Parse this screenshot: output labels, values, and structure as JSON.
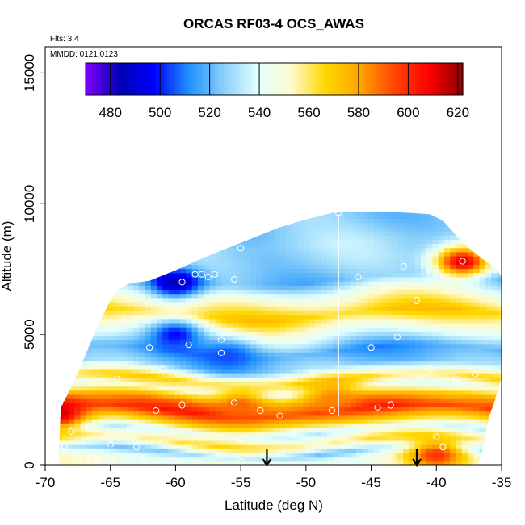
{
  "chart_data": {
    "type": "heatmap",
    "title": "ORCAS RF03-4 OCS_AWAS",
    "notes": [
      "Flts: 3,4",
      "MMDD: 0121,0123"
    ],
    "xlabel": "Latitude (deg N)",
    "ylabel": "Altitude (m)",
    "xlim": [
      -70,
      -35
    ],
    "ylim": [
      0,
      16000
    ],
    "x_ticks": [
      -70,
      -65,
      -60,
      -55,
      -50,
      -45,
      -40,
      -35
    ],
    "x_tick_labels": [
      "-70",
      "-65",
      "-60",
      "-55",
      "-50",
      "-45",
      "-40",
      "-35"
    ],
    "y_ticks": [
      0,
      5000,
      10000,
      15000
    ],
    "y_tick_labels": [
      "0",
      "5000",
      "10000",
      "15000"
    ],
    "colorbar": {
      "range": [
        470,
        622
      ],
      "ticks": [
        480,
        500,
        520,
        540,
        560,
        580,
        600,
        620
      ],
      "tick_labels": [
        "480",
        "500",
        "520",
        "540",
        "560",
        "580",
        "600",
        "620"
      ],
      "colors": [
        "#7f00ff",
        "#0000b3",
        "#0000ff",
        "#1e90ff",
        "#87cefa",
        "#e0ffff",
        "#fffacd",
        "#ffd700",
        "#ffa500",
        "#ff4500",
        "#ff0000",
        "#8b0000"
      ]
    },
    "envelope_top": [
      [
        -68.8,
        2200
      ],
      [
        -68,
        3000
      ],
      [
        -67,
        4100
      ],
      [
        -66,
        5300
      ],
      [
        -65,
        6300
      ],
      [
        -64.5,
        6700
      ],
      [
        -63.5,
        6950
      ],
      [
        -62,
        7050
      ],
      [
        -60,
        7450
      ],
      [
        -58,
        7900
      ],
      [
        -56,
        8300
      ],
      [
        -54,
        8700
      ],
      [
        -52,
        9100
      ],
      [
        -50,
        9400
      ],
      [
        -48,
        9650
      ],
      [
        -46,
        9700
      ],
      [
        -44,
        9700
      ],
      [
        -42,
        9650
      ],
      [
        -40.5,
        9600
      ],
      [
        -39.5,
        9350
      ],
      [
        -38.5,
        8800
      ],
      [
        -37.5,
        8300
      ],
      [
        -36.5,
        7900
      ],
      [
        -35.5,
        7550
      ],
      [
        -35,
        7200
      ]
    ],
    "envelope_bottom": [
      [
        -35,
        3400
      ],
      [
        -35.5,
        2500
      ],
      [
        -36,
        1800
      ],
      [
        -36.5,
        500
      ],
      [
        -36.8,
        0
      ]
    ],
    "x_left_bottom": -69,
    "field_bands": [
      {
        "alt": 200,
        "value": 548
      },
      {
        "alt": 500,
        "value": 528
      },
      {
        "alt": 900,
        "value": 562
      },
      {
        "alt": 1300,
        "value": 538
      },
      {
        "alt": 1750,
        "value": 575
      },
      {
        "alt": 2100,
        "value": 600
      },
      {
        "alt": 2500,
        "value": 582
      },
      {
        "alt": 2900,
        "value": 545
      },
      {
        "alt": 3300,
        "value": 565
      },
      {
        "alt": 3800,
        "value": 526
      },
      {
        "alt": 4400,
        "value": 515
      },
      {
        "alt": 5000,
        "value": 540
      },
      {
        "alt": 5800,
        "value": 570
      },
      {
        "alt": 6500,
        "value": 548
      },
      {
        "alt": 7100,
        "value": 522
      },
      {
        "alt": 7800,
        "value": 528
      },
      {
        "alt": 8500,
        "value": 530
      },
      {
        "alt": 9300,
        "value": 525
      }
    ],
    "hot_spots": [
      {
        "lat": -38,
        "alt": 7800,
        "value": 612
      },
      {
        "lat": -40,
        "alt": 400,
        "value": 598
      },
      {
        "lat": -69,
        "alt": 2000,
        "value": 615
      },
      {
        "lat": -55,
        "alt": 2300,
        "value": 590
      },
      {
        "lat": -48,
        "alt": 2600,
        "value": 585
      }
    ],
    "cold_spots": [
      {
        "lat": -60,
        "alt": 7000,
        "value": 485
      },
      {
        "lat": -60,
        "alt": 5000,
        "value": 498
      },
      {
        "lat": -56,
        "alt": 4200,
        "value": 505
      }
    ],
    "samples": [
      [
        -69,
        200
      ],
      [
        -68.5,
        700
      ],
      [
        -68,
        1300
      ],
      [
        -67,
        1500
      ],
      [
        -66.5,
        1500
      ],
      [
        -67.5,
        300
      ],
      [
        -66.5,
        300
      ],
      [
        -66,
        200
      ],
      [
        -65,
        250
      ],
      [
        -65,
        800
      ],
      [
        -63.5,
        1400
      ],
      [
        -63,
        700
      ],
      [
        -62.5,
        200
      ],
      [
        -60,
        150
      ],
      [
        -55,
        1000
      ],
      [
        -55,
        150
      ],
      [
        -55.5,
        2400
      ],
      [
        -59.5,
        2300
      ],
      [
        -61.5,
        2100
      ],
      [
        -61,
        3700
      ],
      [
        -62,
        4500
      ],
      [
        -59,
        4600
      ],
      [
        -56.5,
        4300
      ],
      [
        -56.5,
        4800
      ],
      [
        -64.5,
        3300
      ],
      [
        -64,
        5500
      ],
      [
        -63,
        5600
      ],
      [
        -64,
        7100
      ],
      [
        -59.5,
        7000
      ],
      [
        -58.5,
        7300
      ],
      [
        -58,
        7300
      ],
      [
        -57.5,
        7200
      ],
      [
        -57,
        7300
      ],
      [
        -55.5,
        7100
      ],
      [
        -55,
        8300
      ],
      [
        -47.5,
        9650
      ],
      [
        -45,
        4500
      ],
      [
        -44.5,
        2200
      ],
      [
        -43.5,
        2300
      ],
      [
        -43,
        4900
      ],
      [
        -42.5,
        7600
      ],
      [
        -41.5,
        6300
      ],
      [
        -40.5,
        3700
      ],
      [
        -40,
        1100
      ],
      [
        -39.5,
        700
      ],
      [
        -38.5,
        3300
      ],
      [
        -38,
        7800
      ],
      [
        -37,
        3500
      ],
      [
        -35.5,
        5000
      ],
      [
        -35,
        7600
      ],
      [
        -43.5,
        300
      ],
      [
        -47,
        100
      ],
      [
        -48,
        2100
      ],
      [
        -52,
        1900
      ],
      [
        -51,
        1200
      ],
      [
        -53.5,
        2100
      ],
      [
        -46,
        7200
      ],
      [
        -44,
        6800
      ]
    ],
    "flight_gap_lat": -47.5,
    "arrows": [
      -53,
      -41.5
    ],
    "grid": false,
    "legend": "colorbar-top"
  }
}
